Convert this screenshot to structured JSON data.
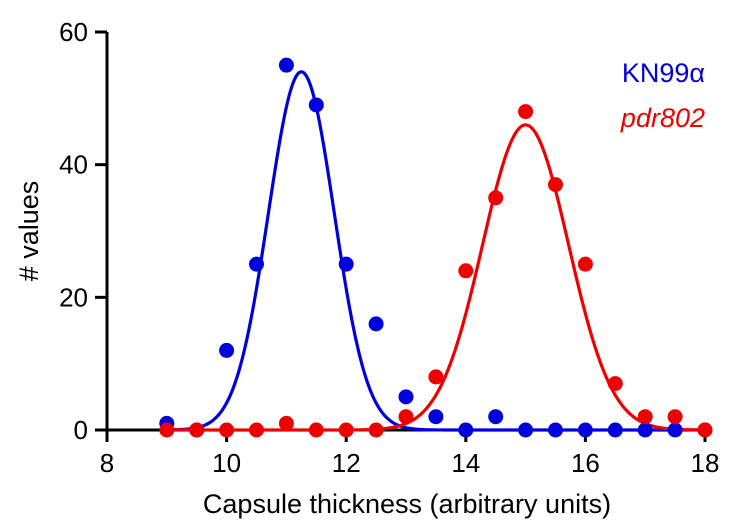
{
  "chart_data": {
    "type": "scatter",
    "xlabel": "Capsule thickness (arbitrary units)",
    "ylabel": "# values",
    "xlim": [
      8,
      18
    ],
    "ylim": [
      0,
      60
    ],
    "xticks": [
      8,
      10,
      12,
      14,
      16,
      18
    ],
    "yticks": [
      0,
      20,
      40,
      60
    ],
    "legend_placement": "top-right",
    "grid": false,
    "series": [
      {
        "name": "KN99α",
        "color": "#0000dd",
        "italic": false,
        "points": [
          [
            9,
            1
          ],
          [
            9.5,
            0
          ],
          [
            10,
            12
          ],
          [
            10.5,
            25
          ],
          [
            11,
            55
          ],
          [
            11.5,
            49
          ],
          [
            12,
            25
          ],
          [
            12.5,
            16
          ],
          [
            13,
            5
          ],
          [
            13.5,
            2
          ],
          [
            14,
            0
          ],
          [
            14.5,
            2
          ],
          [
            15,
            0
          ],
          [
            15.5,
            0
          ],
          [
            16,
            0
          ],
          [
            16.5,
            0
          ],
          [
            17,
            0
          ],
          [
            17.5,
            0
          ],
          [
            18,
            0
          ]
        ],
        "fit": {
          "type": "gaussian",
          "amplitude": 54,
          "mean": 11.25,
          "sd": 0.55
        }
      },
      {
        "name": "pdr802",
        "color": "#ee0000",
        "italic": true,
        "points": [
          [
            9,
            0
          ],
          [
            9.5,
            0
          ],
          [
            10,
            0
          ],
          [
            10.5,
            0
          ],
          [
            11,
            1
          ],
          [
            11.5,
            0
          ],
          [
            12,
            0
          ],
          [
            12.5,
            0
          ],
          [
            13,
            2
          ],
          [
            13.5,
            8
          ],
          [
            14,
            24
          ],
          [
            14.5,
            35
          ],
          [
            15,
            48
          ],
          [
            15.5,
            37
          ],
          [
            16,
            25
          ],
          [
            16.5,
            7
          ],
          [
            17,
            2
          ],
          [
            17.5,
            2
          ],
          [
            18,
            0
          ]
        ],
        "fit": {
          "type": "gaussian",
          "amplitude": 46,
          "mean": 15,
          "sd": 0.72
        }
      }
    ]
  }
}
